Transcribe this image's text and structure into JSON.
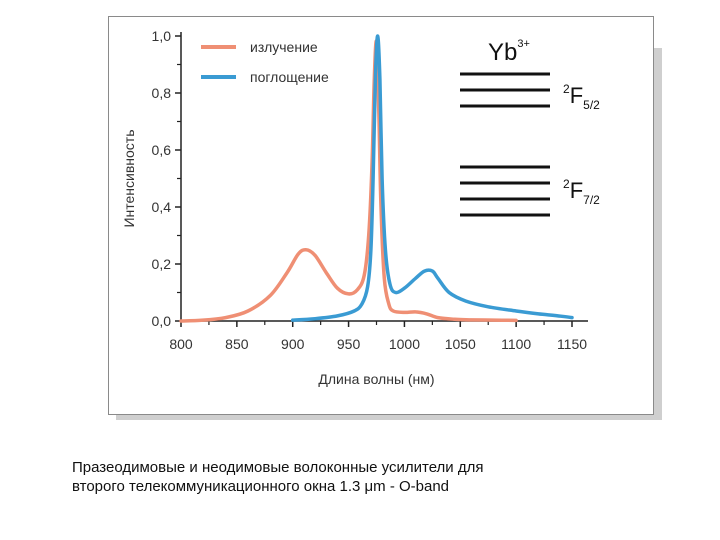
{
  "chart_data": {
    "type": "line",
    "xlabel": "Длина волны (нм)",
    "ylabel": "Интенсивность",
    "xlim": [
      800,
      1150
    ],
    "ylim": [
      0,
      1.0
    ],
    "x_ticks": [
      "800",
      "850",
      "900",
      "950",
      "1000",
      "1050",
      "1100",
      "1150"
    ],
    "y_ticks": [
      "0,0",
      "0,2",
      "0,4",
      "0,6",
      "0,8",
      "1,0"
    ],
    "legend_position": "top-left",
    "series": [
      {
        "name": "излучение",
        "color": "#ef8f74",
        "points": [
          [
            800,
            0.0
          ],
          [
            820,
            0.003
          ],
          [
            840,
            0.012
          ],
          [
            860,
            0.035
          ],
          [
            880,
            0.09
          ],
          [
            895,
            0.17
          ],
          [
            905,
            0.235
          ],
          [
            912,
            0.25
          ],
          [
            920,
            0.23
          ],
          [
            930,
            0.17
          ],
          [
            940,
            0.115
          ],
          [
            950,
            0.095
          ],
          [
            958,
            0.11
          ],
          [
            964,
            0.16
          ],
          [
            968,
            0.3
          ],
          [
            971,
            0.55
          ],
          [
            973,
            0.85
          ],
          [
            975,
            0.98
          ],
          [
            977,
            0.75
          ],
          [
            979,
            0.4
          ],
          [
            982,
            0.15
          ],
          [
            986,
            0.06
          ],
          [
            990,
            0.035
          ],
          [
            1000,
            0.03
          ],
          [
            1010,
            0.032
          ],
          [
            1020,
            0.025
          ],
          [
            1030,
            0.012
          ],
          [
            1045,
            0.006
          ],
          [
            1060,
            0.004
          ],
          [
            1080,
            0.003
          ],
          [
            1100,
            0.002
          ]
        ]
      },
      {
        "name": "поглощение",
        "color": "#3a9bd3",
        "points": [
          [
            900,
            0.003
          ],
          [
            920,
            0.008
          ],
          [
            940,
            0.018
          ],
          [
            955,
            0.035
          ],
          [
            962,
            0.06
          ],
          [
            967,
            0.12
          ],
          [
            970,
            0.25
          ],
          [
            972,
            0.5
          ],
          [
            974,
            0.85
          ],
          [
            976,
            1.0
          ],
          [
            978,
            0.85
          ],
          [
            980,
            0.5
          ],
          [
            983,
            0.25
          ],
          [
            987,
            0.13
          ],
          [
            992,
            0.1
          ],
          [
            1000,
            0.115
          ],
          [
            1010,
            0.15
          ],
          [
            1018,
            0.175
          ],
          [
            1025,
            0.175
          ],
          [
            1030,
            0.15
          ],
          [
            1040,
            0.1
          ],
          [
            1055,
            0.07
          ],
          [
            1075,
            0.05
          ],
          [
            1100,
            0.035
          ],
          [
            1120,
            0.025
          ],
          [
            1140,
            0.017
          ],
          [
            1150,
            0.012
          ]
        ]
      }
    ]
  },
  "energy_diagram": {
    "ion": "Yb",
    "ion_charge": "3+",
    "levels": [
      {
        "superscript": "2",
        "symbol": "F",
        "subscript": "5/2",
        "lines": 3
      },
      {
        "superscript": "2",
        "symbol": "F",
        "subscript": "7/2",
        "lines": 4
      }
    ]
  },
  "caption": {
    "line1": "Празеодимовые и неодимовые волоконные усилители для",
    "line2": "второго телекоммуникационного окна  1.3 μm -  O-band"
  }
}
